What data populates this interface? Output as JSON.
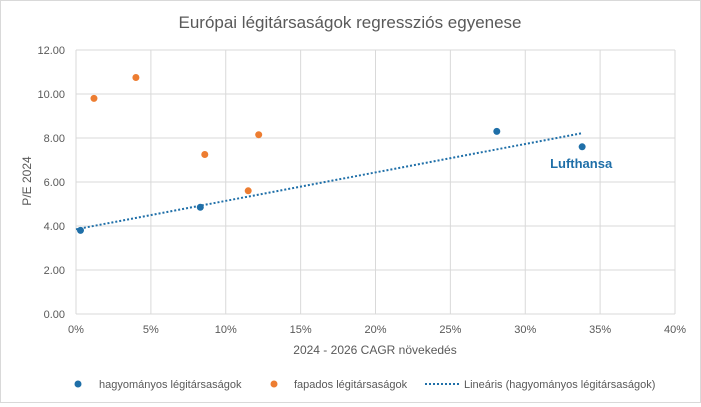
{
  "chart_data": {
    "type": "scatter",
    "title": "Európai légitársaságok regressziós egyenese",
    "xlabel": "2024 - 2026 CAGR növekedés",
    "ylabel": "P/E 2024",
    "xlim": [
      0,
      0.4
    ],
    "ylim": [
      0,
      12
    ],
    "x_ticks": [
      0,
      0.05,
      0.1,
      0.15,
      0.2,
      0.25,
      0.3,
      0.35,
      0.4
    ],
    "x_tick_labels": [
      "0%",
      "5%",
      "10%",
      "15%",
      "20%",
      "25%",
      "30%",
      "35%",
      "40%"
    ],
    "y_ticks": [
      0,
      2,
      4,
      6,
      8,
      10,
      12
    ],
    "y_tick_labels": [
      "0.00",
      "2.00",
      "4.00",
      "6.00",
      "8.00",
      "10.00",
      "12.00"
    ],
    "grid": true,
    "legend_position": "bottom",
    "series": [
      {
        "name": "hagyományos légitársaságok",
        "color": "#1f6fa8",
        "points": [
          {
            "x": 0.003,
            "y": 3.8
          },
          {
            "x": 0.083,
            "y": 4.85
          },
          {
            "x": 0.281,
            "y": 8.3
          },
          {
            "x": 0.338,
            "y": 7.6,
            "label": "Lufthansa"
          }
        ]
      },
      {
        "name": "fapados légitársaságok",
        "color": "#ed7d31",
        "points": [
          {
            "x": 0.012,
            "y": 9.8
          },
          {
            "x": 0.04,
            "y": 10.75
          },
          {
            "x": 0.086,
            "y": 7.25
          },
          {
            "x": 0.115,
            "y": 5.6
          },
          {
            "x": 0.122,
            "y": 8.15
          }
        ]
      }
    ],
    "trendline": {
      "name": "Lineáris (hagyományos légitársaságok)",
      "color": "#1f6fa8",
      "style": "dotted",
      "x_start": 0.0,
      "x_end": 0.338,
      "y_start": 3.85,
      "y_end": 8.22
    },
    "annotation": {
      "text": "Lufthansa",
      "color": "#1f6fa8"
    }
  }
}
